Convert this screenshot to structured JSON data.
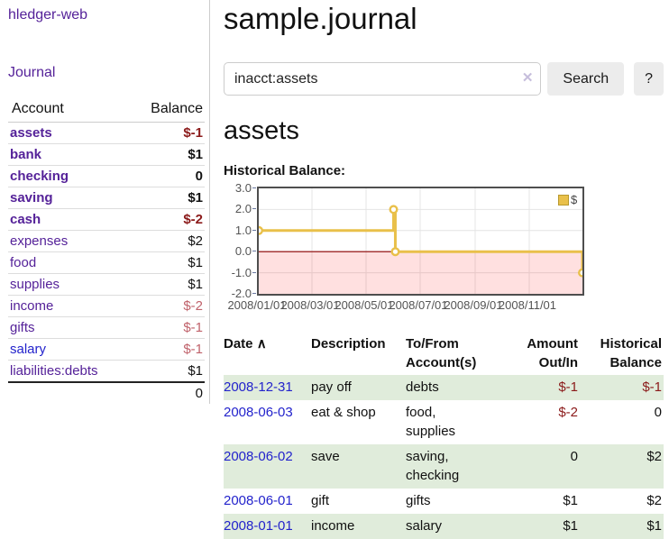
{
  "app": {
    "brand": "hledger-web",
    "nav_journal": "Journal"
  },
  "sidebar": {
    "header": {
      "account": "Account",
      "balance": "Balance"
    },
    "accounts": [
      {
        "label": "assets",
        "level": 1,
        "bold": true,
        "balance": "$-1",
        "neg": "strong"
      },
      {
        "label": "bank",
        "level": 2,
        "bold": true,
        "balance": "$1"
      },
      {
        "label": "checking",
        "level": 3,
        "bold": true,
        "balance": "0"
      },
      {
        "label": "saving",
        "level": 3,
        "bold": true,
        "balance": "$1"
      },
      {
        "label": "cash",
        "level": 2,
        "bold": true,
        "balance": "$-2",
        "neg": "strong"
      },
      {
        "label": "expenses",
        "level": 1,
        "bold": false,
        "balance": "$2"
      },
      {
        "label": "food",
        "level": 2,
        "bold": false,
        "balance": "$1"
      },
      {
        "label": "supplies",
        "level": 2,
        "bold": false,
        "balance": "$1"
      },
      {
        "label": "income",
        "level": 1,
        "bold": false,
        "balance": "$-2",
        "neg": "soft"
      },
      {
        "label": "gifts",
        "level": 2,
        "bold": false,
        "balance": "$-1",
        "neg": "soft"
      },
      {
        "label": "salary",
        "level": 2,
        "bold": false,
        "balance": "$-1",
        "neg": "soft",
        "blue": true
      },
      {
        "label": "liabilities:debts",
        "level": 1,
        "bold": false,
        "balance": "$1"
      }
    ],
    "total": "0"
  },
  "main": {
    "title": "sample.journal",
    "search": {
      "value": "inacct:assets",
      "clear_icon": "✕",
      "button": "Search",
      "help_button": "?"
    },
    "account_heading": "assets",
    "chart_heading": "Historical Balance:"
  },
  "chart_data": {
    "type": "line",
    "title": "Historical Balance:",
    "step": true,
    "xrange": [
      "2008-01-01",
      "2008-12-31"
    ],
    "ylim": [
      -2.0,
      3.0
    ],
    "yticks": [
      "3.0",
      "2.0",
      "1.0",
      "0.0",
      "-1.0",
      "-2.0"
    ],
    "xticks": [
      "2008/01/01",
      "2008/03/01",
      "2008/05/01",
      "2008/07/01",
      "2008/09/01",
      "2008/11/01"
    ],
    "series": [
      {
        "name": "$",
        "points": [
          [
            "2008-01-01",
            1
          ],
          [
            "2008-06-01",
            2
          ],
          [
            "2008-06-03",
            0
          ],
          [
            "2008-12-31",
            -1
          ]
        ]
      }
    ],
    "legend": {
      "label": "$",
      "position": "top-right"
    },
    "grid": true,
    "negative_region": true
  },
  "register": {
    "columns": {
      "date": "Date",
      "description": "Description",
      "accounts": "To/From Account(s)",
      "amount": "Amount Out/In",
      "balance": "Historical Balance"
    },
    "sort_icon": "∧",
    "rows": [
      {
        "date": "2008-12-31",
        "description": "pay off",
        "accounts": "debts",
        "amount": "$-1",
        "amount_neg": true,
        "balance": "$-1",
        "balance_neg": true,
        "shaded": true
      },
      {
        "date": "2008-06-03",
        "description": "eat & shop",
        "accounts": "food, supplies",
        "amount": "$-2",
        "amount_neg": true,
        "balance": "0",
        "balance_neg": false,
        "shaded": false
      },
      {
        "date": "2008-06-02",
        "description": "save",
        "accounts": "saving, checking",
        "amount": "0",
        "amount_neg": false,
        "balance": "$2",
        "balance_neg": false,
        "shaded": true
      },
      {
        "date": "2008-06-01",
        "description": "gift",
        "accounts": "gifts",
        "amount": "$1",
        "amount_neg": false,
        "balance": "$2",
        "balance_neg": false,
        "shaded": false
      },
      {
        "date": "2008-01-01",
        "description": "income",
        "accounts": "salary",
        "amount": "$1",
        "amount_neg": false,
        "balance": "$1",
        "balance_neg": false,
        "shaded": true
      }
    ]
  },
  "colors": {
    "link-purple": "#552299",
    "link-blue": "#2323cc",
    "neg-strong": "#8b1a1a",
    "neg-soft": "#c0626b",
    "row-shade": "#e0ecdb",
    "chart-line": "#e9c04a",
    "chart-zero": "#8b0000",
    "chart-neg-fill": "rgba(255,0,0,0.12)",
    "chart-label": "#545454",
    "text": "#111111"
  }
}
